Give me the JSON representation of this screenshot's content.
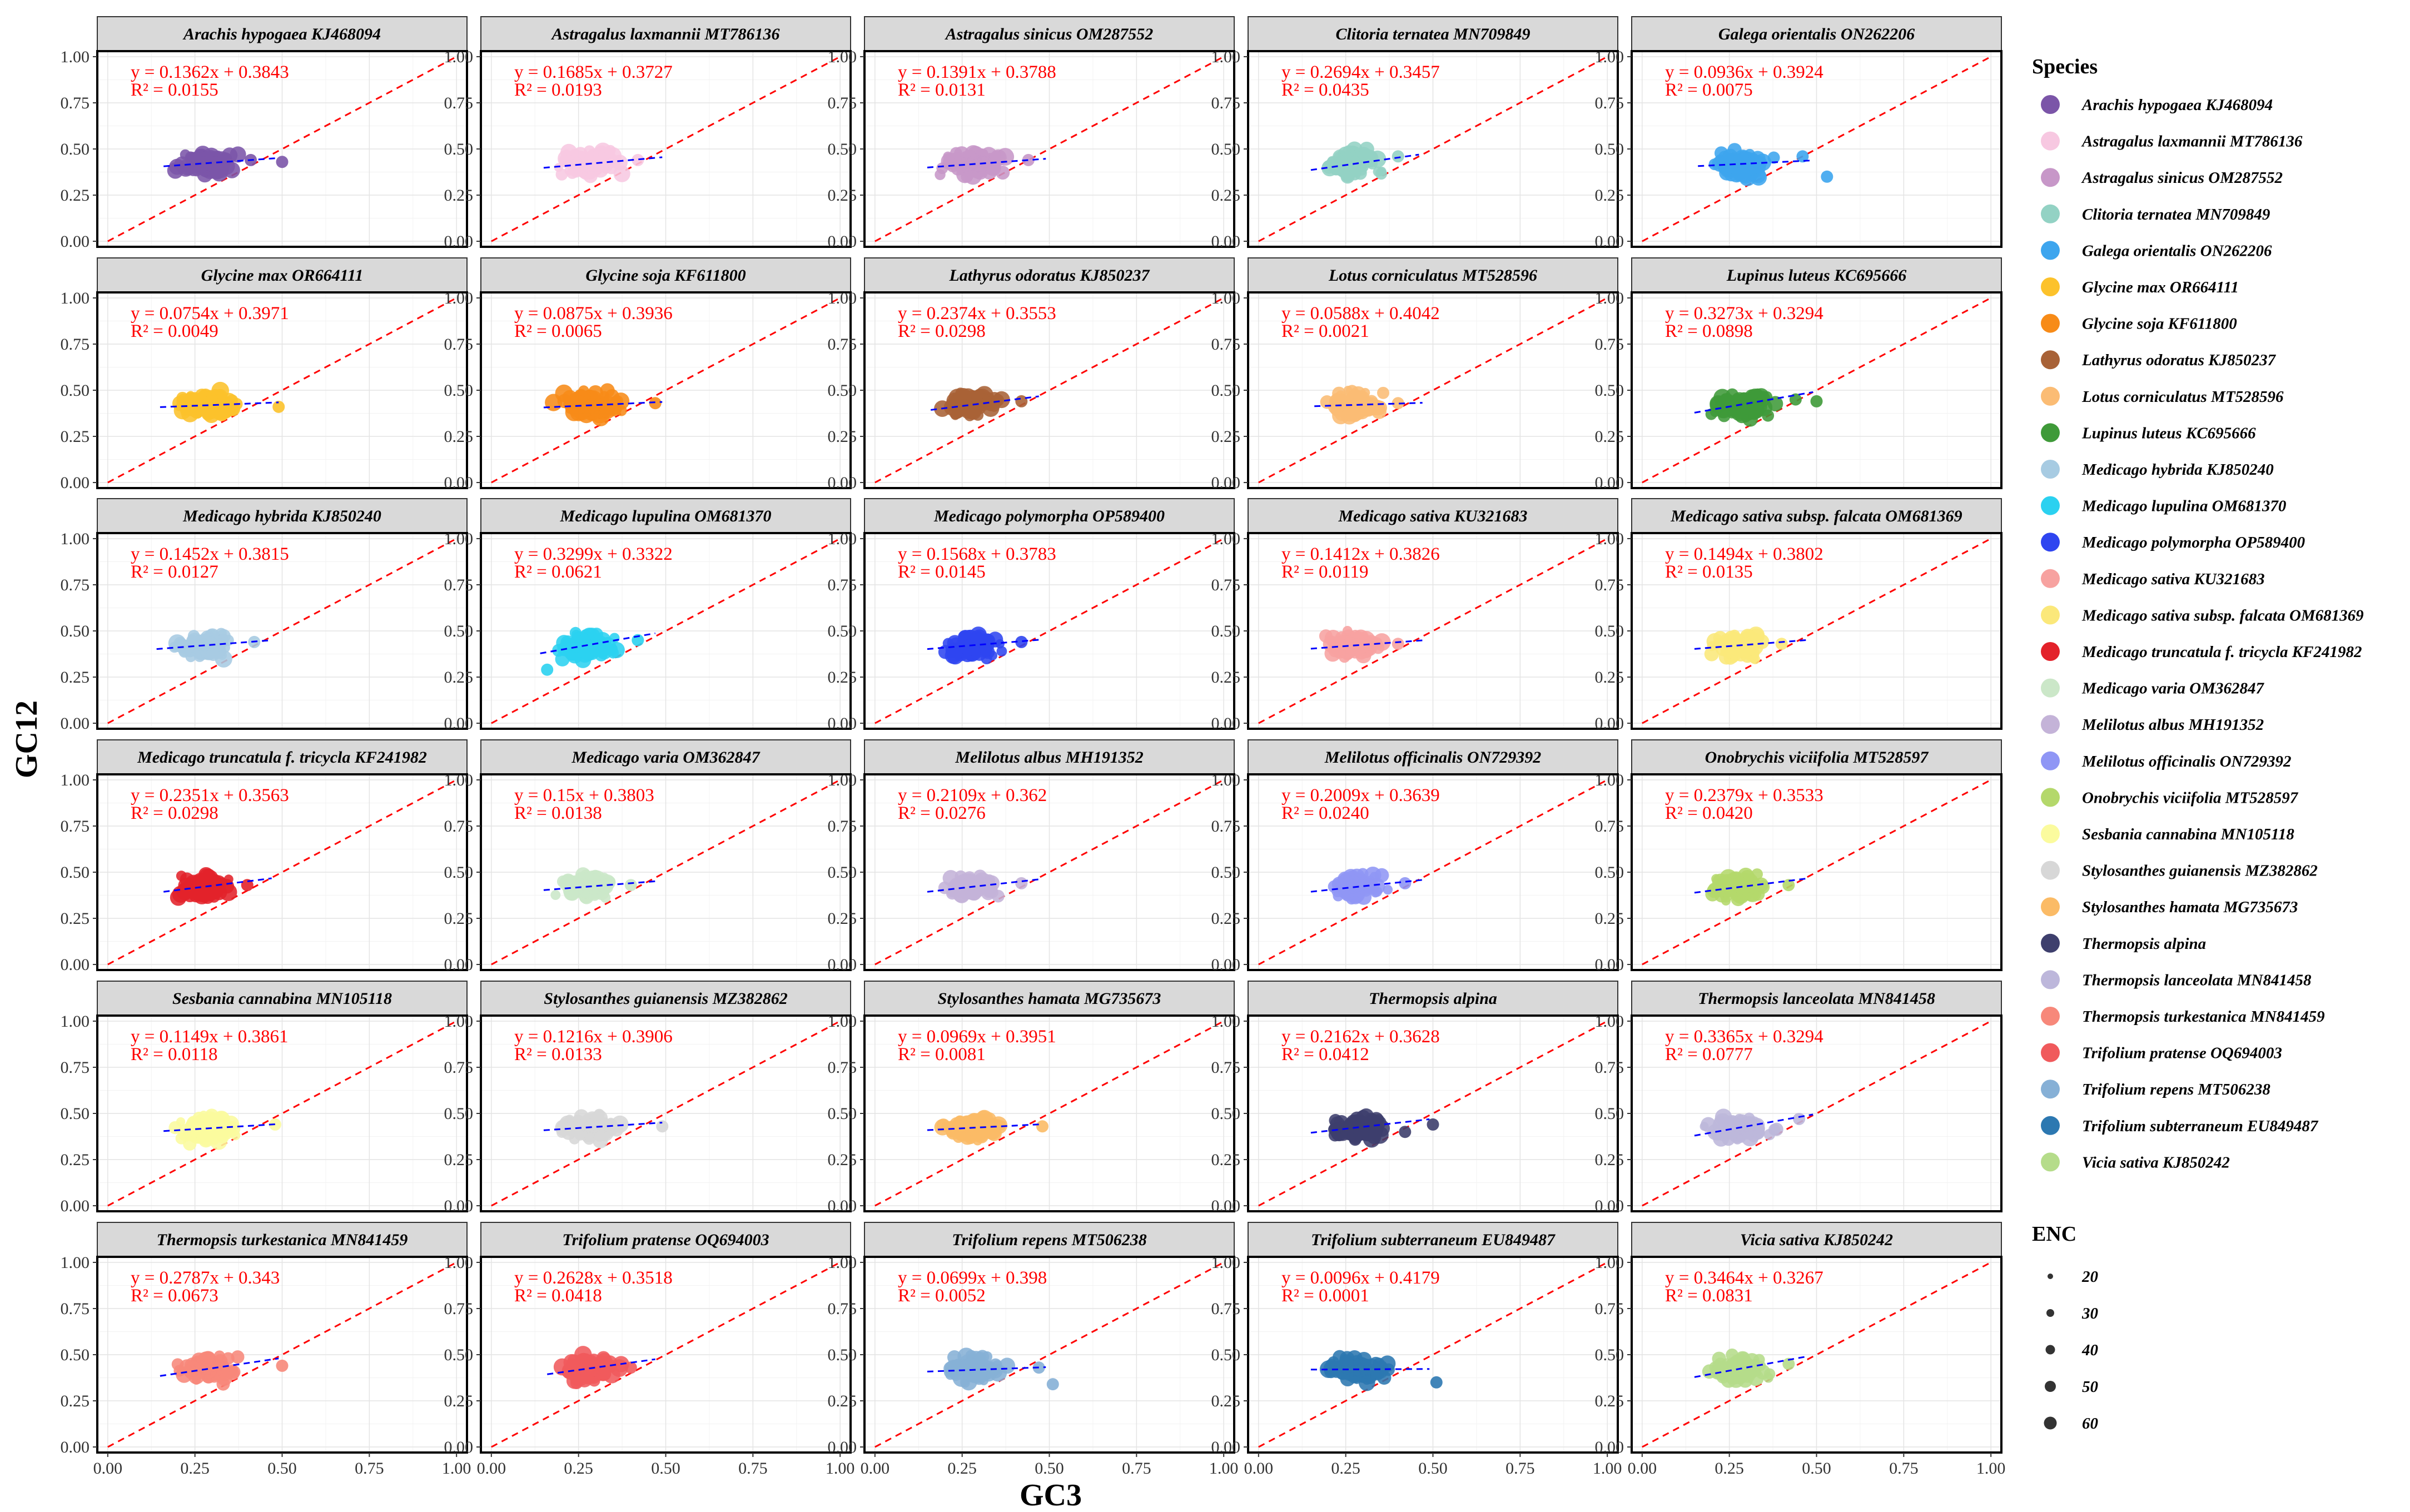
{
  "chart_data": {
    "type": "scatter",
    "facet_layout": "5 columns x 6 rows",
    "xlabel": "GC3",
    "ylabel": "GC12",
    "xlim": [
      0,
      1
    ],
    "ylim": [
      0,
      1
    ],
    "x_ticks": [
      "0.00",
      "0.25",
      "0.50",
      "0.75",
      "1.00"
    ],
    "y_ticks": [
      "0.00",
      "0.25",
      "0.50",
      "0.75",
      "1.00"
    ],
    "grid": true,
    "reference_line": {
      "slope": 1,
      "intercept": 0,
      "color": "#ff0000",
      "style": "dashed"
    },
    "regression_line_color": "#0000ff",
    "panels": [
      {
        "name": "Arachis hypogaea KJ468094",
        "equation": "y = 0.1362x + 0.3843",
        "r2": "R² = 0.0155",
        "slope": 0.1362,
        "intercept": 0.3843,
        "color": "#7b55a8",
        "gc3_range": [
          0.18,
          0.4
        ],
        "gc12_center": 0.42,
        "outliers": [
          [
            0.5,
            0.43
          ],
          [
            0.41,
            0.44
          ]
        ]
      },
      {
        "name": "Astragalus laxmannii MT786136",
        "equation": "y = 0.1685x + 0.3727",
        "r2": "R² = 0.0193",
        "slope": 0.1685,
        "intercept": 0.3727,
        "color": "#f7c8e1",
        "gc3_range": [
          0.17,
          0.4
        ],
        "gc12_center": 0.42,
        "outliers": [
          [
            0.42,
            0.44
          ]
        ]
      },
      {
        "name": "Astragalus sinicus OM287552",
        "equation": "y = 0.1391x + 0.3788",
        "r2": "R² = 0.0131",
        "slope": 0.1391,
        "intercept": 0.3788,
        "color": "#c797c8",
        "gc3_range": [
          0.17,
          0.4
        ],
        "gc12_center": 0.42,
        "outliers": [
          [
            0.44,
            0.44
          ]
        ]
      },
      {
        "name": "Clitoria ternatea MN709849",
        "equation": "y = 0.2694x + 0.3457",
        "r2": "R² = 0.0435",
        "slope": 0.2694,
        "intercept": 0.3457,
        "color": "#93d2c4",
        "gc3_range": [
          0.17,
          0.37
        ],
        "gc12_center": 0.42,
        "outliers": [
          [
            0.4,
            0.46
          ]
        ]
      },
      {
        "name": "Galega orientalis ON262206",
        "equation": "y = 0.0936x + 0.3924",
        "r2": "R² = 0.0075",
        "slope": 0.0936,
        "intercept": 0.3924,
        "color": "#3da5ee",
        "gc3_range": [
          0.18,
          0.4
        ],
        "gc12_center": 0.42,
        "outliers": [
          [
            0.53,
            0.35
          ],
          [
            0.46,
            0.46
          ]
        ]
      },
      {
        "name": "Glycine max OR664111",
        "equation": "y = 0.0754x + 0.3971",
        "r2": "R² = 0.0049",
        "slope": 0.0754,
        "intercept": 0.3971,
        "color": "#fcc22b",
        "gc3_range": [
          0.17,
          0.4
        ],
        "gc12_center": 0.42,
        "outliers": [
          [
            0.49,
            0.41
          ]
        ]
      },
      {
        "name": "Glycine soja KF611800",
        "equation": "y = 0.0875x + 0.3936",
        "r2": "R² = 0.0065",
        "slope": 0.0875,
        "intercept": 0.3936,
        "color": "#f78b18",
        "gc3_range": [
          0.17,
          0.4
        ],
        "gc12_center": 0.42,
        "outliers": [
          [
            0.47,
            0.43
          ]
        ]
      },
      {
        "name": "Lathyrus odoratus KJ850237",
        "equation": "y = 0.2374x + 0.3553",
        "r2": "R² = 0.0298",
        "slope": 0.2374,
        "intercept": 0.3553,
        "color": "#a86237",
        "gc3_range": [
          0.18,
          0.38
        ],
        "gc12_center": 0.42,
        "outliers": [
          [
            0.42,
            0.44
          ]
        ]
      },
      {
        "name": "Lotus corniculatus MT528596",
        "equation": "y = 0.0588x + 0.4042",
        "r2": "R² = 0.0021",
        "slope": 0.0588,
        "intercept": 0.4042,
        "color": "#fbbc74",
        "gc3_range": [
          0.18,
          0.38
        ],
        "gc12_center": 0.42,
        "outliers": [
          [
            0.4,
            0.43
          ]
        ]
      },
      {
        "name": "Lupinus luteus KC695666",
        "equation": "y = 0.3273x + 0.3294",
        "r2": "R² = 0.0898",
        "slope": 0.3273,
        "intercept": 0.3294,
        "color": "#3f9a39",
        "gc3_range": [
          0.17,
          0.4
        ],
        "gc12_center": 0.42,
        "outliers": [
          [
            0.5,
            0.44
          ],
          [
            0.44,
            0.45
          ]
        ]
      },
      {
        "name": "Medicago hybrida KJ850240",
        "equation": "y = 0.1452x + 0.3815",
        "r2": "R² = 0.0127",
        "slope": 0.1452,
        "intercept": 0.3815,
        "color": "#a7cbe2",
        "gc3_range": [
          0.16,
          0.38
        ],
        "gc12_center": 0.42,
        "outliers": [
          [
            0.42,
            0.44
          ]
        ]
      },
      {
        "name": "Medicago lupulina OM681370",
        "equation": "y = 0.3299x + 0.3322",
        "r2": "R² = 0.0621",
        "slope": 0.3299,
        "intercept": 0.3322,
        "color": "#2bd1f0",
        "gc3_range": [
          0.16,
          0.38
        ],
        "gc12_center": 0.42,
        "outliers": [
          [
            0.16,
            0.29
          ],
          [
            0.42,
            0.45
          ]
        ]
      },
      {
        "name": "Medicago polymorpha OP589400",
        "equation": "y = 0.1568x + 0.3783",
        "r2": "R² = 0.0145",
        "slope": 0.1568,
        "intercept": 0.3783,
        "color": "#2f45f0",
        "gc3_range": [
          0.17,
          0.38
        ],
        "gc12_center": 0.42,
        "outliers": [
          [
            0.42,
            0.44
          ]
        ]
      },
      {
        "name": "Medicago sativa KU321683",
        "equation": "y = 0.1412x + 0.3826",
        "r2": "R² = 0.0119",
        "slope": 0.1412,
        "intercept": 0.3826,
        "color": "#f7a2a0",
        "gc3_range": [
          0.17,
          0.38
        ],
        "gc12_center": 0.42,
        "outliers": [
          [
            0.4,
            0.43
          ]
        ]
      },
      {
        "name": "Medicago sativa subsp. falcata OM681369",
        "equation": "y = 0.1494x + 0.3802",
        "r2": "R² = 0.0135",
        "slope": 0.1494,
        "intercept": 0.3802,
        "color": "#fbe87a",
        "gc3_range": [
          0.17,
          0.38
        ],
        "gc12_center": 0.42,
        "outliers": [
          [
            0.4,
            0.43
          ]
        ]
      },
      {
        "name": "Medicago truncatula f. tricycla KF241982",
        "equation": "y = 0.2351x + 0.3563",
        "r2": "R² = 0.0298",
        "slope": 0.2351,
        "intercept": 0.3563,
        "color": "#e3222a",
        "gc3_range": [
          0.18,
          0.38
        ],
        "gc12_center": 0.42,
        "outliers": [
          [
            0.4,
            0.43
          ]
        ]
      },
      {
        "name": "Medicago varia OM362847",
        "equation": "y = 0.15x + 0.3803",
        "r2": "R² = 0.0138",
        "slope": 0.15,
        "intercept": 0.3803,
        "color": "#cbe7c8",
        "gc3_range": [
          0.17,
          0.38
        ],
        "gc12_center": 0.42,
        "outliers": [
          [
            0.4,
            0.43
          ]
        ]
      },
      {
        "name": "Melilotus albus MH191352",
        "equation": "y = 0.2109x + 0.362",
        "r2": "R² = 0.0276",
        "slope": 0.2109,
        "intercept": 0.362,
        "color": "#c4b3d8",
        "gc3_range": [
          0.17,
          0.38
        ],
        "gc12_center": 0.42,
        "outliers": [
          [
            0.42,
            0.44
          ]
        ]
      },
      {
        "name": "Melilotus officinalis ON729392",
        "equation": "y = 0.2009x + 0.3639",
        "r2": "R² = 0.0240",
        "slope": 0.2009,
        "intercept": 0.3639,
        "color": "#8f96f5",
        "gc3_range": [
          0.17,
          0.38
        ],
        "gc12_center": 0.42,
        "outliers": [
          [
            0.42,
            0.44
          ]
        ]
      },
      {
        "name": "Onobrychis viciifolia MT528597",
        "equation": "y = 0.2379x + 0.3533",
        "r2": "R² = 0.0420",
        "slope": 0.2379,
        "intercept": 0.3533,
        "color": "#b4d86b",
        "gc3_range": [
          0.17,
          0.38
        ],
        "gc12_center": 0.42,
        "outliers": [
          [
            0.42,
            0.43
          ]
        ]
      },
      {
        "name": "Sesbania cannabina MN105118",
        "equation": "y = 0.1149x + 0.3861",
        "r2": "R² = 0.0118",
        "slope": 0.1149,
        "intercept": 0.3861,
        "color": "#fbfb9e",
        "gc3_range": [
          0.18,
          0.4
        ],
        "gc12_center": 0.42,
        "outliers": [
          [
            0.48,
            0.44
          ]
        ]
      },
      {
        "name": "Stylosanthes guianensis MZ382862",
        "equation": "y = 0.1216x + 0.3906",
        "r2": "R² = 0.0133",
        "slope": 0.1216,
        "intercept": 0.3906,
        "color": "#d7d7d7",
        "gc3_range": [
          0.17,
          0.4
        ],
        "gc12_center": 0.42,
        "outliers": [
          [
            0.49,
            0.43
          ]
        ]
      },
      {
        "name": "Stylosanthes hamata MG735673",
        "equation": "y = 0.0969x + 0.3951",
        "r2": "R² = 0.0081",
        "slope": 0.0969,
        "intercept": 0.3951,
        "color": "#fbbb66",
        "gc3_range": [
          0.17,
          0.38
        ],
        "gc12_center": 0.42,
        "outliers": [
          [
            0.48,
            0.43
          ]
        ]
      },
      {
        "name": "Thermopsis alpina",
        "equation": "y = 0.2162x + 0.3628",
        "r2": "R² = 0.0412",
        "slope": 0.2162,
        "intercept": 0.3628,
        "color": "#3e3f6d",
        "gc3_range": [
          0.17,
          0.4
        ],
        "gc12_center": 0.42,
        "outliers": [
          [
            0.5,
            0.44
          ],
          [
            0.42,
            0.4
          ]
        ]
      },
      {
        "name": "Thermopsis lanceolata MN841458",
        "equation": "y = 0.3365x + 0.3294",
        "r2": "R² = 0.0777",
        "slope": 0.3365,
        "intercept": 0.3294,
        "color": "#bdb7db",
        "gc3_range": [
          0.17,
          0.4
        ],
        "gc12_center": 0.42,
        "outliers": [
          [
            0.45,
            0.47
          ]
        ]
      },
      {
        "name": "Thermopsis turkestanica MN841459",
        "equation": "y = 0.2787x + 0.343",
        "r2": "R² = 0.0673",
        "slope": 0.2787,
        "intercept": 0.343,
        "color": "#f7887a",
        "gc3_range": [
          0.17,
          0.4
        ],
        "gc12_center": 0.42,
        "outliers": [
          [
            0.5,
            0.44
          ]
        ]
      },
      {
        "name": "Trifolium pratense OQ694003",
        "equation": "y = 0.2628x + 0.3518",
        "r2": "R² = 0.0418",
        "slope": 0.2628,
        "intercept": 0.3518,
        "color": "#f05a5c",
        "gc3_range": [
          0.18,
          0.38
        ],
        "gc12_center": 0.42,
        "outliers": [
          [
            0.4,
            0.43
          ]
        ]
      },
      {
        "name": "Trifolium repens MT506238",
        "equation": "y = 0.0699x + 0.398",
        "r2": "R² = 0.0052",
        "slope": 0.0699,
        "intercept": 0.398,
        "color": "#86b0d6",
        "gc3_range": [
          0.17,
          0.4
        ],
        "gc12_center": 0.42,
        "outliers": [
          [
            0.51,
            0.34
          ],
          [
            0.47,
            0.43
          ]
        ]
      },
      {
        "name": "Trifolium subterraneum EU849487",
        "equation": "y = 0.0096x + 0.4179",
        "r2": "R² = 0.0001",
        "slope": 0.0096,
        "intercept": 0.4179,
        "color": "#2c78b1",
        "gc3_range": [
          0.17,
          0.4
        ],
        "gc12_center": 0.42,
        "outliers": [
          [
            0.51,
            0.35
          ]
        ]
      },
      {
        "name": "Vicia sativa KJ850242",
        "equation": "y = 0.3464x + 0.3267",
        "r2": "R² = 0.0831",
        "slope": 0.3464,
        "intercept": 0.3267,
        "color": "#b5dc8a",
        "gc3_range": [
          0.17,
          0.38
        ],
        "gc12_center": 0.42,
        "outliers": [
          [
            0.42,
            0.45
          ]
        ]
      }
    ],
    "legend": {
      "title": "Species",
      "placement": "right",
      "items": [
        {
          "label": "Arachis hypogaea KJ468094",
          "color": "#7b55a8"
        },
        {
          "label": "Astragalus laxmannii MT786136",
          "color": "#f7c8e1"
        },
        {
          "label": "Astragalus sinicus OM287552",
          "color": "#c797c8"
        },
        {
          "label": "Clitoria ternatea MN709849",
          "color": "#93d2c4"
        },
        {
          "label": "Galega orientalis ON262206",
          "color": "#3da5ee"
        },
        {
          "label": "Glycine max OR664111",
          "color": "#fcc22b"
        },
        {
          "label": "Glycine soja KF611800",
          "color": "#f78b18"
        },
        {
          "label": "Lathyrus odoratus KJ850237",
          "color": "#a86237"
        },
        {
          "label": "Lotus corniculatus MT528596",
          "color": "#fbbc74"
        },
        {
          "label": "Lupinus luteus KC695666",
          "color": "#3f9a39"
        },
        {
          "label": "Medicago hybrida KJ850240",
          "color": "#a7cbe2"
        },
        {
          "label": "Medicago lupulina OM681370",
          "color": "#2bd1f0"
        },
        {
          "label": "Medicago polymorpha OP589400",
          "color": "#2f45f0"
        },
        {
          "label": "Medicago sativa KU321683",
          "color": "#f7a2a0"
        },
        {
          "label": "Medicago sativa subsp. falcata OM681369",
          "color": "#fbe87a"
        },
        {
          "label": "Medicago truncatula f. tricycla KF241982",
          "color": "#e3222a"
        },
        {
          "label": "Medicago varia OM362847",
          "color": "#cbe7c8"
        },
        {
          "label": "Melilotus albus MH191352",
          "color": "#c4b3d8"
        },
        {
          "label": "Melilotus officinalis ON729392",
          "color": "#8f96f5"
        },
        {
          "label": "Onobrychis viciifolia MT528597",
          "color": "#b4d86b"
        },
        {
          "label": "Sesbania cannabina MN105118",
          "color": "#fbfb9e"
        },
        {
          "label": "Stylosanthes guianensis MZ382862",
          "color": "#d7d7d7"
        },
        {
          "label": "Stylosanthes hamata MG735673",
          "color": "#fbbb66"
        },
        {
          "label": "Thermopsis alpina",
          "color": "#3e3f6d"
        },
        {
          "label": "Thermopsis lanceolata MN841458",
          "color": "#bdb7db"
        },
        {
          "label": "Thermopsis turkestanica MN841459",
          "color": "#f7887a"
        },
        {
          "label": "Trifolium pratense OQ694003",
          "color": "#f05a5c"
        },
        {
          "label": "Trifolium repens MT506238",
          "color": "#86b0d6"
        },
        {
          "label": "Trifolium subterraneum EU849487",
          "color": "#2c78b1"
        },
        {
          "label": "Vicia sativa KJ850242",
          "color": "#b5dc8a"
        }
      ]
    },
    "size_legend": {
      "title": "ENC",
      "items": [
        "20",
        "30",
        "40",
        "50",
        "60"
      ]
    }
  }
}
